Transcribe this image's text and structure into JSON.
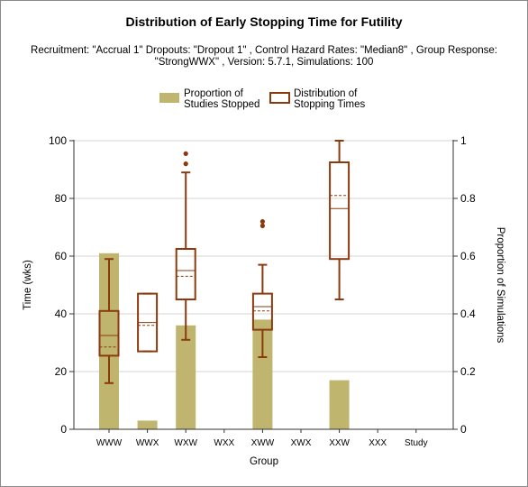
{
  "chart_data": {
    "type": "bar+boxplot",
    "title": "Distribution of Early Stopping Time for Futility",
    "subtitle_line1": "Recruitment: \"Accrual 1\" Dropouts: \"Dropout 1\" , Control Hazard Rates: \"Median8\" , Group Response:",
    "subtitle_line2": "\"StrongWWX\" , Version: 5.7.1, Simulations: 100",
    "xlabel": "Group",
    "ylabel_left": "Time (wks)",
    "ylabel_right": "Proportion of Simulations",
    "ylim_left": [
      0,
      100
    ],
    "ylim_right": [
      0,
      1
    ],
    "yticks_left": [
      "0",
      "20",
      "40",
      "60",
      "80",
      "100"
    ],
    "yticks_right": [
      "0",
      "0.2",
      "0.4",
      "0.6",
      "0.8",
      "1"
    ],
    "categories": [
      "WWW",
      "WWX",
      "WXW",
      "WXX",
      "XWW",
      "XWX",
      "XXW",
      "XXX",
      "Study"
    ],
    "legend": {
      "bar_label_line1": "Proportion of",
      "bar_label_line2": "Studies Stopped",
      "box_label_line1": "Distribution of",
      "box_label_line2": "Stopping Times"
    },
    "colors": {
      "bar": "#bfb56f",
      "box": "#8b3a0f",
      "grid": "#d4d4d4"
    },
    "proportion_stopped": [
      0.61,
      0.03,
      0.36,
      0,
      0.38,
      0,
      0.17,
      0,
      0
    ],
    "boxes": [
      {
        "category": "WWW",
        "min": 16,
        "q1": 25.5,
        "median": 32.5,
        "mean": 28.5,
        "q3": 41,
        "max": 59,
        "outliers": []
      },
      {
        "category": "WWX",
        "min": 27,
        "q1": 27,
        "median": 37,
        "mean": 36,
        "q3": 47,
        "max": 47,
        "outliers": []
      },
      {
        "category": "WXW",
        "min": 31,
        "q1": 45,
        "median": 55,
        "mean": 53,
        "q3": 62.5,
        "max": 89,
        "outliers": [
          92,
          95.5
        ]
      },
      {
        "category": "XWW",
        "min": 25,
        "q1": 34.5,
        "median": 42.5,
        "mean": 41,
        "q3": 47,
        "max": 57,
        "outliers": [
          70.5,
          72
        ]
      },
      {
        "category": "XXW",
        "min": 45,
        "q1": 59,
        "median": 76.5,
        "mean": 81,
        "q3": 92.5,
        "max": 100,
        "outliers": []
      }
    ]
  }
}
